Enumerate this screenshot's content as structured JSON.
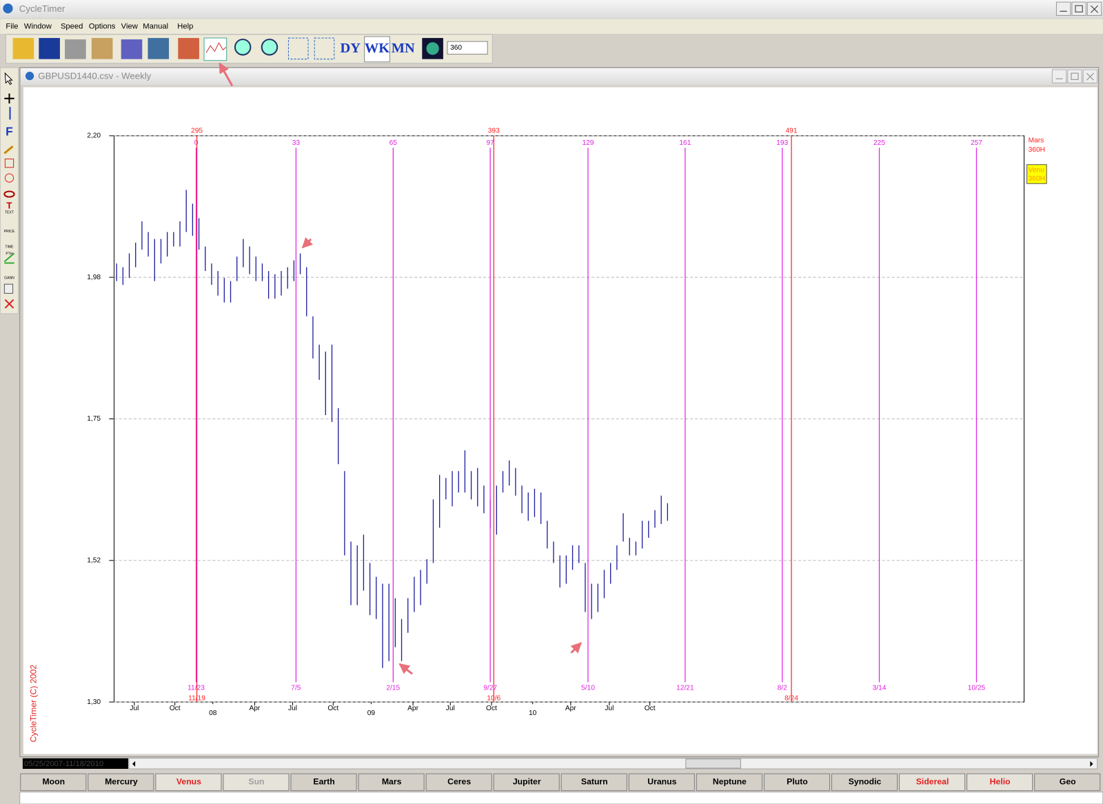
{
  "window": {
    "title": "CycleTimer"
  },
  "menu": [
    "File",
    "Window",
    "Speed",
    "Options",
    "View",
    "Manual",
    "Help"
  ],
  "toolbar": {
    "icon_labels": [
      "DY",
      "WK",
      "MN"
    ],
    "input": "360"
  },
  "tools": [
    "F",
    "T",
    "TEXT",
    "PRICE",
    "TIME",
    "PTH",
    "GANN"
  ],
  "document": {
    "title": "GBPUSD1440.csv - Weekly",
    "copyright": "CycleTimer (C) 2002",
    "range": "05/25/2007-11/18/2010"
  },
  "chart_data": {
    "type": "hilo",
    "ylim": [
      1.3,
      2.2
    ],
    "yticks": [
      {
        "value": 1.3,
        "label": "1,30"
      },
      {
        "value": 1.525,
        "label": "1,52"
      },
      {
        "value": 1.75,
        "label": "1,75"
      },
      {
        "value": 1.975,
        "label": "1,98"
      },
      {
        "value": 2.2,
        "label": "2,20"
      }
    ],
    "grid": true,
    "xlim": [
      -0.4,
      143.3
    ],
    "xticks": [
      {
        "value": 2.8,
        "label": "Jul"
      },
      {
        "value": 9.2,
        "label": "Oct"
      },
      {
        "value": 21.8,
        "label": "Apr"
      },
      {
        "value": 27.8,
        "label": "Jul"
      },
      {
        "value": 34.2,
        "label": "Oct"
      },
      {
        "value": 46.8,
        "label": "Apr"
      },
      {
        "value": 52.7,
        "label": "Jul"
      },
      {
        "value": 59.2,
        "label": "Oct"
      },
      {
        "value": 71.7,
        "label": "Apr"
      },
      {
        "value": 77.8,
        "label": "Jul"
      },
      {
        "value": 84.2,
        "label": "Oct"
      }
    ],
    "year_ticks": [
      {
        "value": 15.2,
        "label": "08"
      },
      {
        "value": 40.2,
        "label": "09"
      },
      {
        "value": 65.7,
        "label": "10"
      }
    ],
    "series": [
      {
        "name": "GBPUSD",
        "color": "#1c1ca0",
        "high": [
          1.997,
          1.991,
          2.013,
          2.03,
          2.064,
          2.047,
          2.036,
          2.036,
          2.047,
          2.047,
          2.064,
          2.114,
          2.092,
          2.069,
          2.024,
          1.997,
          1.985,
          1.974,
          1.969,
          2.008,
          2.036,
          2.024,
          2.008,
          1.997,
          1.985,
          1.98,
          1.985,
          1.991,
          2.002,
          2.013,
          1.991,
          1.913,
          1.868,
          1.857,
          1.868,
          1.767,
          1.667,
          1.555,
          1.549,
          1.566,
          1.521,
          1.499,
          1.488,
          1.488,
          1.465,
          1.432,
          1.465,
          1.499,
          1.51,
          1.527,
          1.622,
          1.661,
          1.656,
          1.667,
          1.667,
          1.7,
          1.667,
          1.672,
          1.644,
          1.622,
          1.644,
          1.667,
          1.684,
          1.672,
          1.644,
          1.633,
          1.639,
          1.633,
          1.588,
          1.555,
          1.533,
          1.533,
          1.549,
          1.549,
          1.521,
          1.488,
          1.488,
          1.51,
          1.521,
          1.549,
          1.6,
          1.561,
          1.555,
          1.588,
          1.588,
          1.605,
          1.628,
          1.616
        ],
        "low": [
          1.969,
          1.963,
          1.974,
          1.991,
          2.019,
          2.008,
          1.969,
          1.997,
          2.008,
          2.024,
          2.024,
          2.047,
          2.041,
          2.019,
          1.985,
          1.963,
          1.946,
          1.935,
          1.935,
          1.969,
          1.991,
          1.98,
          1.969,
          1.969,
          1.941,
          1.941,
          1.946,
          1.957,
          1.969,
          1.98,
          1.913,
          1.846,
          1.812,
          1.756,
          1.745,
          1.678,
          1.533,
          1.454,
          1.454,
          1.477,
          1.438,
          1.432,
          1.354,
          1.365,
          1.387,
          1.365,
          1.41,
          1.443,
          1.454,
          1.488,
          1.521,
          1.577,
          1.622,
          1.611,
          1.633,
          1.633,
          1.622,
          1.611,
          1.6,
          1.577,
          1.566,
          1.633,
          1.644,
          1.628,
          1.6,
          1.588,
          1.594,
          1.583,
          1.544,
          1.521,
          1.482,
          1.488,
          1.51,
          1.521,
          1.443,
          1.432,
          1.443,
          1.465,
          1.488,
          1.51,
          1.555,
          1.533,
          1.533,
          1.544,
          1.561,
          1.577,
          1.583,
          1.588
        ]
      }
    ],
    "cycles": [
      {
        "name": "Mars",
        "period": "360H",
        "color": "#ff2020",
        "lines": [
          {
            "x": 12.67,
            "count": 295,
            "date": "11/19"
          },
          {
            "x": 59.56,
            "count": 393,
            "date": "10/6"
          },
          {
            "x": 106.56,
            "count": 491,
            "date": "8/24"
          }
        ]
      },
      {
        "name": "Venu",
        "period": "360H",
        "color": "#e020e0",
        "lines": [
          {
            "x": 12.56,
            "count": 0,
            "date": "11/23"
          },
          {
            "x": 28.33,
            "count": 33,
            "date": "7/5"
          },
          {
            "x": 43.67,
            "count": 65,
            "date": "2/15"
          },
          {
            "x": 59.0,
            "count": 97,
            "date": "9/27"
          },
          {
            "x": 74.44,
            "count": 129,
            "date": "5/10"
          },
          {
            "x": 89.78,
            "count": 161,
            "date": "12/21"
          },
          {
            "x": 105.11,
            "count": 193,
            "date": "8/2"
          },
          {
            "x": 120.44,
            "count": 225,
            "date": "3/14"
          },
          {
            "x": 135.78,
            "count": 257,
            "date": "10/25"
          }
        ]
      }
    ]
  },
  "planet_buttons": [
    {
      "label": "Moon",
      "state": "normal"
    },
    {
      "label": "Mercury",
      "state": "normal"
    },
    {
      "label": "Venus",
      "state": "active"
    },
    {
      "label": "Sun",
      "state": "disabled"
    },
    {
      "label": "Earth",
      "state": "normal"
    },
    {
      "label": "Mars",
      "state": "normal"
    },
    {
      "label": "Ceres",
      "state": "normal"
    },
    {
      "label": "Jupiter",
      "state": "normal"
    },
    {
      "label": "Saturn",
      "state": "normal"
    },
    {
      "label": "Uranus",
      "state": "normal"
    },
    {
      "label": "Neptune",
      "state": "normal"
    },
    {
      "label": "Pluto",
      "state": "normal"
    },
    {
      "label": "Synodic",
      "state": "normal"
    },
    {
      "label": "Sidereal",
      "state": "active"
    },
    {
      "label": "Helio",
      "state": "active"
    },
    {
      "label": "Geo",
      "state": "normal"
    }
  ]
}
